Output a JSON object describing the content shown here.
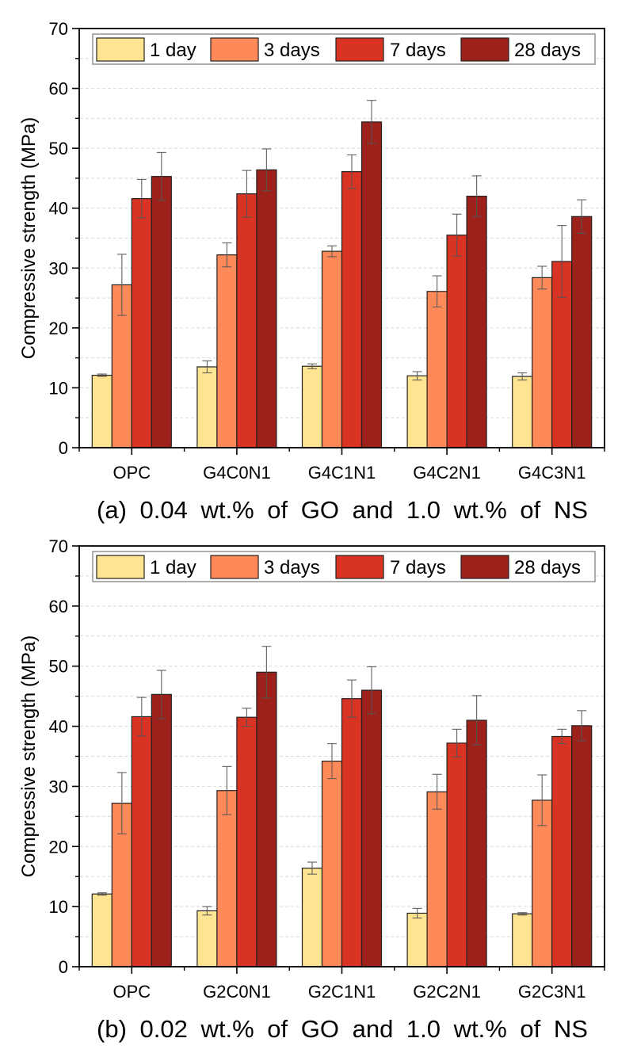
{
  "chart_data": [
    {
      "type": "bar",
      "caption": "(a) 0.04 wt.% of GO and 1.0 wt.% of NS",
      "ylabel": "Compressive strength (MPa)",
      "xlabel": "",
      "ylim": [
        0,
        70
      ],
      "yticks": [
        0,
        10,
        20,
        30,
        40,
        50,
        60,
        70
      ],
      "grid": true,
      "legend_position": "top",
      "categories": [
        "OPC",
        "G4C0N1",
        "G4C1N1",
        "G4C2N1",
        "G4C3N1"
      ],
      "series": [
        {
          "name": "1 day",
          "color": "#FFE591",
          "values": [
            12.1,
            13.5,
            13.6,
            12.0,
            11.9
          ],
          "errors": [
            0.2,
            1.0,
            0.4,
            0.7,
            0.6
          ]
        },
        {
          "name": "3 days",
          "color": "#FF8A59",
          "values": [
            27.2,
            32.2,
            32.8,
            26.1,
            28.4
          ],
          "errors": [
            5.1,
            2.0,
            0.9,
            2.6,
            1.9
          ]
        },
        {
          "name": "7 days",
          "color": "#D93323",
          "values": [
            41.6,
            42.4,
            46.1,
            35.5,
            31.1
          ],
          "errors": [
            3.2,
            3.9,
            2.8,
            3.5,
            6.0
          ]
        },
        {
          "name": "28 days",
          "color": "#9C211B",
          "values": [
            45.3,
            46.4,
            54.4,
            42.0,
            38.6
          ],
          "errors": [
            4.0,
            3.5,
            3.6,
            3.4,
            2.8
          ]
        }
      ]
    },
    {
      "type": "bar",
      "caption": "(b) 0.02 wt.% of GO and 1.0 wt.% of NS",
      "ylabel": "Compressive strength (MPa)",
      "xlabel": "",
      "ylim": [
        0,
        70
      ],
      "yticks": [
        0,
        10,
        20,
        30,
        40,
        50,
        60,
        70
      ],
      "grid": true,
      "legend_position": "top",
      "categories": [
        "OPC",
        "G2C0N1",
        "G2C1N1",
        "G2C2N1",
        "G2C3N1"
      ],
      "series": [
        {
          "name": "1 day",
          "color": "#FFE591",
          "values": [
            12.1,
            9.3,
            16.4,
            8.9,
            8.8
          ],
          "errors": [
            0.2,
            0.7,
            1.0,
            0.8,
            0.2
          ]
        },
        {
          "name": "3 days",
          "color": "#FF8A59",
          "values": [
            27.2,
            29.3,
            34.2,
            29.1,
            27.7
          ],
          "errors": [
            5.1,
            4.0,
            2.9,
            2.9,
            4.2
          ]
        },
        {
          "name": "7 days",
          "color": "#D93323",
          "values": [
            41.6,
            41.5,
            44.6,
            37.2,
            38.3
          ],
          "errors": [
            3.2,
            1.5,
            3.1,
            2.3,
            1.2
          ]
        },
        {
          "name": "28 days",
          "color": "#9C211B",
          "values": [
            45.3,
            49.0,
            46.0,
            41.0,
            40.1
          ],
          "errors": [
            4.0,
            4.3,
            3.9,
            4.1,
            2.5
          ]
        }
      ]
    }
  ]
}
